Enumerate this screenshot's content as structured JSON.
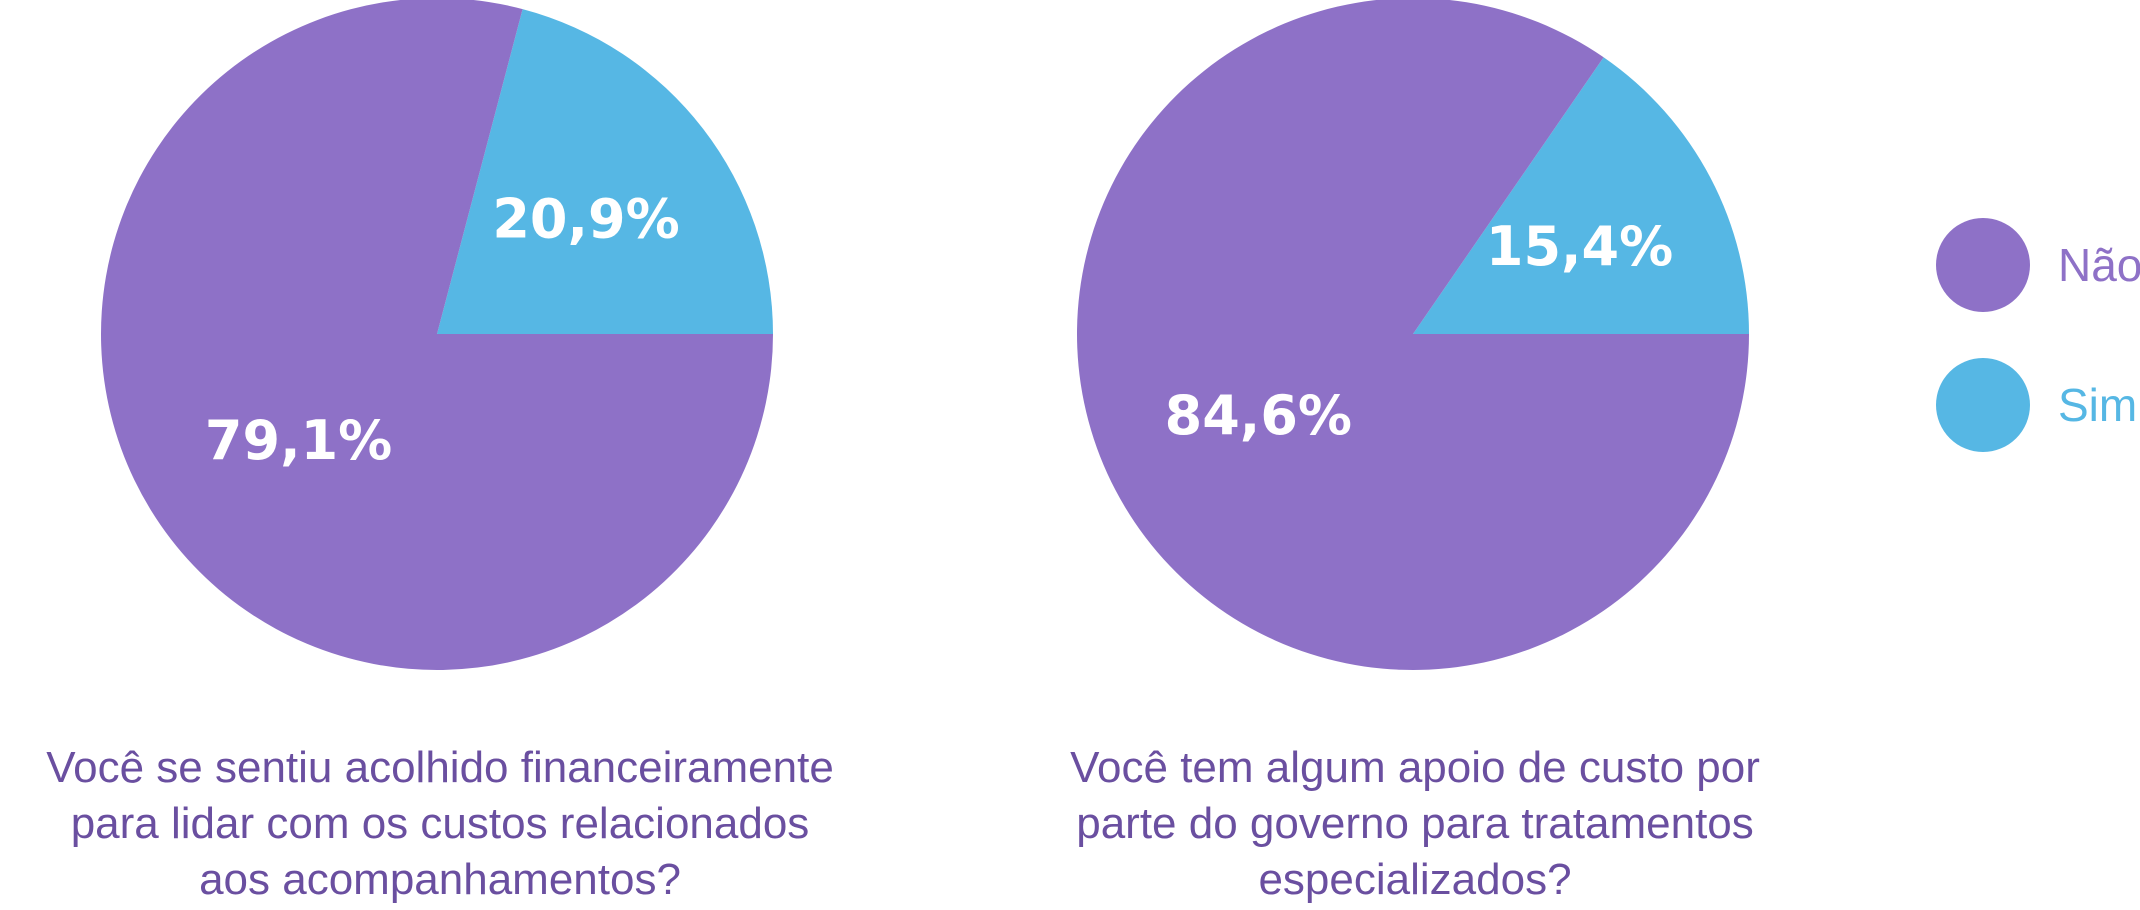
{
  "colors": {
    "nao": "#8E71C7",
    "sim": "#56B7E4",
    "caption_text": "#6A4FA0",
    "slice_label": "#FFFFFF"
  },
  "legend": [
    {
      "label": "Não",
      "color": "#8E71C7"
    },
    {
      "label": "Sim",
      "color": "#56B7E4"
    }
  ],
  "chart_data": [
    {
      "type": "pie",
      "title_lines": [
        "Você se sentiu acolhido financeiramente",
        "para lidar com os custos relacionados",
        "aos acompanhamentos?"
      ],
      "slices": [
        {
          "name": "Sim",
          "value": 20.9,
          "label": "20,9%",
          "color": "#56B7E4"
        },
        {
          "name": "Não",
          "value": 79.1,
          "label": "79,1%",
          "color": "#8E71C7"
        }
      ]
    },
    {
      "type": "pie",
      "title_lines": [
        "Você tem algum apoio de custo por",
        "parte do governo para tratamentos",
        "especializados?"
      ],
      "slices": [
        {
          "name": "Sim",
          "value": 15.4,
          "label": "15,4%",
          "color": "#56B7E4"
        },
        {
          "name": "Não",
          "value": 84.6,
          "label": "84,6%",
          "color": "#8E71C7"
        }
      ]
    }
  ]
}
